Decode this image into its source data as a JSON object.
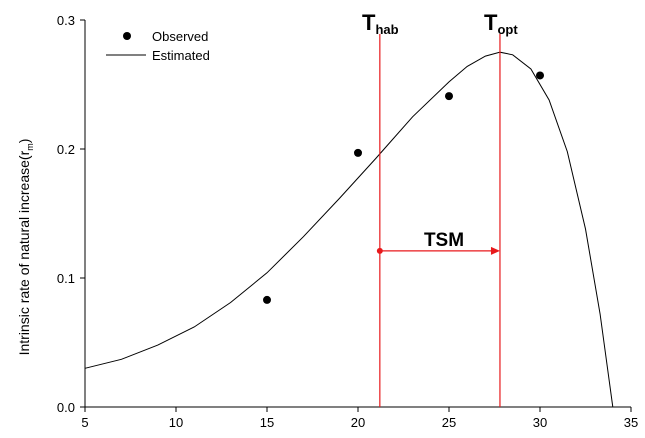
{
  "chart_data": {
    "type": "scatter",
    "xlabel": "",
    "ylabel": "Intrinsic rate of natural increase(r",
    "ylabel_sub": "m",
    "ylabel_close": ")",
    "xlim": [
      5,
      35
    ],
    "ylim": [
      0,
      0.3
    ],
    "xticks": [
      5,
      10,
      15,
      20,
      25,
      30,
      35
    ],
    "yticks": [
      0.0,
      0.1,
      0.2,
      0.3
    ],
    "ytick_labels": [
      "0.0",
      "0.1",
      "0.2",
      "0.3"
    ],
    "grid": false,
    "legend_position": "top-left",
    "series": [
      {
        "name": "Observed",
        "kind": "points",
        "color": "#000000",
        "x": [
          15,
          20,
          25,
          30
        ],
        "y": [
          0.083,
          0.197,
          0.241,
          0.257
        ]
      },
      {
        "name": "Estimated",
        "kind": "line",
        "color": "#000000",
        "x": [
          5,
          7,
          9,
          11,
          13,
          15,
          17,
          19,
          21,
          23,
          25,
          26,
          27,
          27.8,
          28.5,
          29.5,
          30.5,
          31.5,
          32.5,
          33.3,
          34
        ],
        "y": [
          0.03,
          0.037,
          0.048,
          0.062,
          0.081,
          0.104,
          0.132,
          0.162,
          0.193,
          0.225,
          0.252,
          0.264,
          0.272,
          0.275,
          0.273,
          0.262,
          0.238,
          0.198,
          0.138,
          0.072,
          0.0
        ]
      }
    ],
    "markers": {
      "color": "#e8191c",
      "t_hab": {
        "label": "T",
        "sub": "hab",
        "x": 21.2
      },
      "t_opt": {
        "label": "T",
        "sub": "opt",
        "x": 27.8
      },
      "tsm": {
        "label": "TSM",
        "y": 0.121
      }
    }
  }
}
